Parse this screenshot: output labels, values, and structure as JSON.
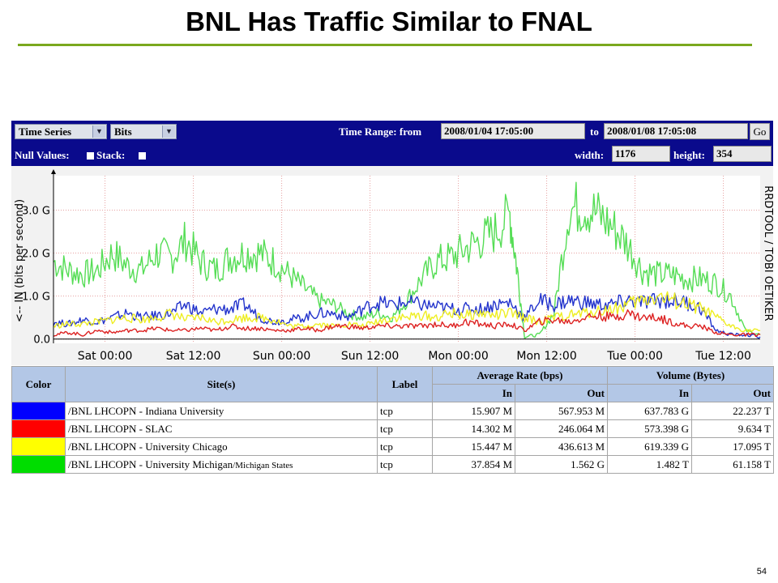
{
  "slide": {
    "title": "BNL Has Traffic Similar to FNAL",
    "page_number": "54"
  },
  "toolbar": {
    "view_select": "Time Series",
    "unit_select": "Bits",
    "time_range_label": "Time Range: from",
    "from_value": "2008/01/04 17:05:00",
    "to_label": "to",
    "to_value": "2008/01/08 17:05:08",
    "go_label": "Go",
    "null_values_label": "Null Values:",
    "stack_label": "Stack:",
    "width_label": "width:",
    "width_value": "1176",
    "height_label": "height:",
    "height_value": "354"
  },
  "chart_data": {
    "type": "line",
    "ylabel": "<-- IN   (bits per second)",
    "side_label": "RRDTOOL / TOBI OETIKER",
    "ytick_labels": [
      "0.0",
      "1.0 G",
      "2.0 G",
      "3.0 G"
    ],
    "yticks": [
      0,
      1.0,
      2.0,
      3.0
    ],
    "ylim": [
      -0.1,
      3.8
    ],
    "xtick_labels": [
      "Sat 00:00",
      "Sat 12:00",
      "Sun 00:00",
      "Sun 12:00",
      "Mon 00:00",
      "Mon 12:00",
      "Tue 00:00",
      "Tue 12:00"
    ],
    "xticks": [
      7,
      19,
      31,
      43,
      55,
      67,
      79,
      91
    ],
    "xlim": [
      0,
      96
    ],
    "grid": true,
    "series": [
      {
        "color": "#55dd55",
        "x": [
          0,
          2,
          4,
          6,
          8,
          10,
          12,
          14,
          16,
          18,
          20,
          22,
          24,
          26,
          28,
          30,
          32,
          34,
          36,
          38,
          40,
          42,
          44,
          46,
          48,
          50,
          52,
          54,
          56,
          58,
          60,
          62,
          63,
          64,
          66,
          68,
          70,
          72,
          74,
          76,
          78,
          80,
          82,
          84,
          86,
          88,
          90,
          92,
          94,
          96
        ],
        "values": [
          1.8,
          1.6,
          1.5,
          1.6,
          2.0,
          1.7,
          1.6,
          2.0,
          1.9,
          2.3,
          1.8,
          1.6,
          1.9,
          2.0,
          2.0,
          1.8,
          1.5,
          1.2,
          0.9,
          0.8,
          0.6,
          0.5,
          0.6,
          0.5,
          0.9,
          1.4,
          1.8,
          1.9,
          2.1,
          2.3,
          2.5,
          2.9,
          1.6,
          0.05,
          0.1,
          0.6,
          3.0,
          3.1,
          2.9,
          2.6,
          2.2,
          1.6,
          1.5,
          1.5,
          1.4,
          1.4,
          1.3,
          1.0,
          0.2,
          0.1
        ]
      },
      {
        "color": "#2233cc",
        "x": [
          0,
          2,
          4,
          6,
          8,
          10,
          12,
          14,
          16,
          18,
          20,
          22,
          24,
          26,
          28,
          30,
          32,
          34,
          36,
          38,
          40,
          42,
          44,
          46,
          48,
          50,
          52,
          54,
          56,
          58,
          60,
          62,
          64,
          66,
          68,
          70,
          72,
          74,
          76,
          78,
          80,
          82,
          84,
          86,
          88,
          90,
          92,
          94,
          96
        ],
        "values": [
          0.4,
          0.35,
          0.45,
          0.4,
          0.5,
          0.6,
          0.5,
          0.55,
          0.6,
          0.8,
          0.6,
          0.7,
          0.7,
          0.8,
          0.5,
          0.4,
          0.45,
          0.5,
          0.6,
          0.6,
          0.5,
          0.7,
          0.85,
          0.8,
          0.85,
          0.8,
          0.75,
          0.7,
          0.7,
          0.7,
          0.8,
          0.85,
          0.5,
          0.9,
          0.8,
          0.9,
          0.85,
          0.8,
          0.8,
          0.9,
          0.85,
          0.9,
          0.9,
          0.85,
          0.7,
          0.2,
          0.1,
          0.1,
          0.05
        ]
      },
      {
        "color": "#eeee22",
        "x": [
          0,
          2,
          4,
          6,
          8,
          10,
          12,
          14,
          16,
          18,
          20,
          22,
          24,
          26,
          28,
          30,
          32,
          34,
          36,
          38,
          40,
          42,
          44,
          46,
          48,
          50,
          52,
          54,
          56,
          58,
          60,
          62,
          64,
          66,
          68,
          70,
          72,
          74,
          76,
          78,
          80,
          82,
          84,
          86,
          88,
          90,
          92,
          94,
          96
        ],
        "values": [
          0.3,
          0.35,
          0.35,
          0.4,
          0.45,
          0.5,
          0.45,
          0.5,
          0.6,
          0.45,
          0.5,
          0.4,
          0.45,
          0.5,
          0.5,
          0.45,
          0.3,
          0.3,
          0.35,
          0.3,
          0.35,
          0.3,
          0.4,
          0.5,
          0.5,
          0.55,
          0.5,
          0.6,
          0.55,
          0.6,
          0.55,
          0.6,
          0.5,
          0.4,
          0.5,
          0.55,
          0.6,
          0.65,
          0.7,
          0.8,
          0.9,
          1.0,
          0.9,
          0.8,
          0.7,
          0.5,
          0.3,
          0.2,
          0.2
        ]
      },
      {
        "color": "#dd2222",
        "x": [
          0,
          2,
          4,
          6,
          8,
          10,
          12,
          14,
          16,
          18,
          20,
          22,
          24,
          26,
          28,
          30,
          32,
          34,
          36,
          38,
          40,
          42,
          44,
          46,
          48,
          50,
          52,
          54,
          56,
          58,
          60,
          62,
          64,
          66,
          68,
          70,
          72,
          74,
          76,
          78,
          80,
          82,
          84,
          86,
          88,
          90,
          92,
          94,
          96
        ],
        "values": [
          0.1,
          0.15,
          0.1,
          0.2,
          0.15,
          0.2,
          0.2,
          0.25,
          0.2,
          0.2,
          0.25,
          0.2,
          0.3,
          0.25,
          0.25,
          0.2,
          0.2,
          0.25,
          0.2,
          0.3,
          0.3,
          0.25,
          0.3,
          0.3,
          0.3,
          0.3,
          0.35,
          0.3,
          0.4,
          0.35,
          0.3,
          0.35,
          0.2,
          0.4,
          0.45,
          0.4,
          0.5,
          0.55,
          0.5,
          0.6,
          0.5,
          0.5,
          0.4,
          0.3,
          0.3,
          0.15,
          0.1,
          0.1,
          0.1
        ]
      }
    ]
  },
  "table": {
    "headers": {
      "color": "Color",
      "sites": "Site(s)",
      "label": "Label",
      "avg_rate": "Average Rate (bps)",
      "volume": "Volume (Bytes)",
      "in": "In",
      "out": "Out"
    },
    "rows": [
      {
        "color": "#0000ff",
        "site": "/BNL LHCOPN - Indiana University",
        "suffix": "",
        "label": "tcp",
        "avg_in": "15.907 M",
        "avg_out": "567.953 M",
        "vol_in": "637.783 G",
        "vol_out": "22.237 T"
      },
      {
        "color": "#ff0000",
        "site": "/BNL LHCOPN - SLAC",
        "suffix": "",
        "label": "tcp",
        "avg_in": "14.302 M",
        "avg_out": "246.064 M",
        "vol_in": "573.398 G",
        "vol_out": "9.634 T"
      },
      {
        "color": "#ffff00",
        "site": "/BNL LHCOPN - University Chicago",
        "suffix": "",
        "label": "tcp",
        "avg_in": "15.447 M",
        "avg_out": "436.613 M",
        "vol_in": "619.339 G",
        "vol_out": "17.095 T"
      },
      {
        "color": "#00dd00",
        "site": "/BNL LHCOPN - University Michigan",
        "suffix": "/Michigan States",
        "label": "tcp",
        "avg_in": "37.854 M",
        "avg_out": "1.562 G",
        "vol_in": "1.482 T",
        "vol_out": "61.158 T"
      }
    ]
  }
}
